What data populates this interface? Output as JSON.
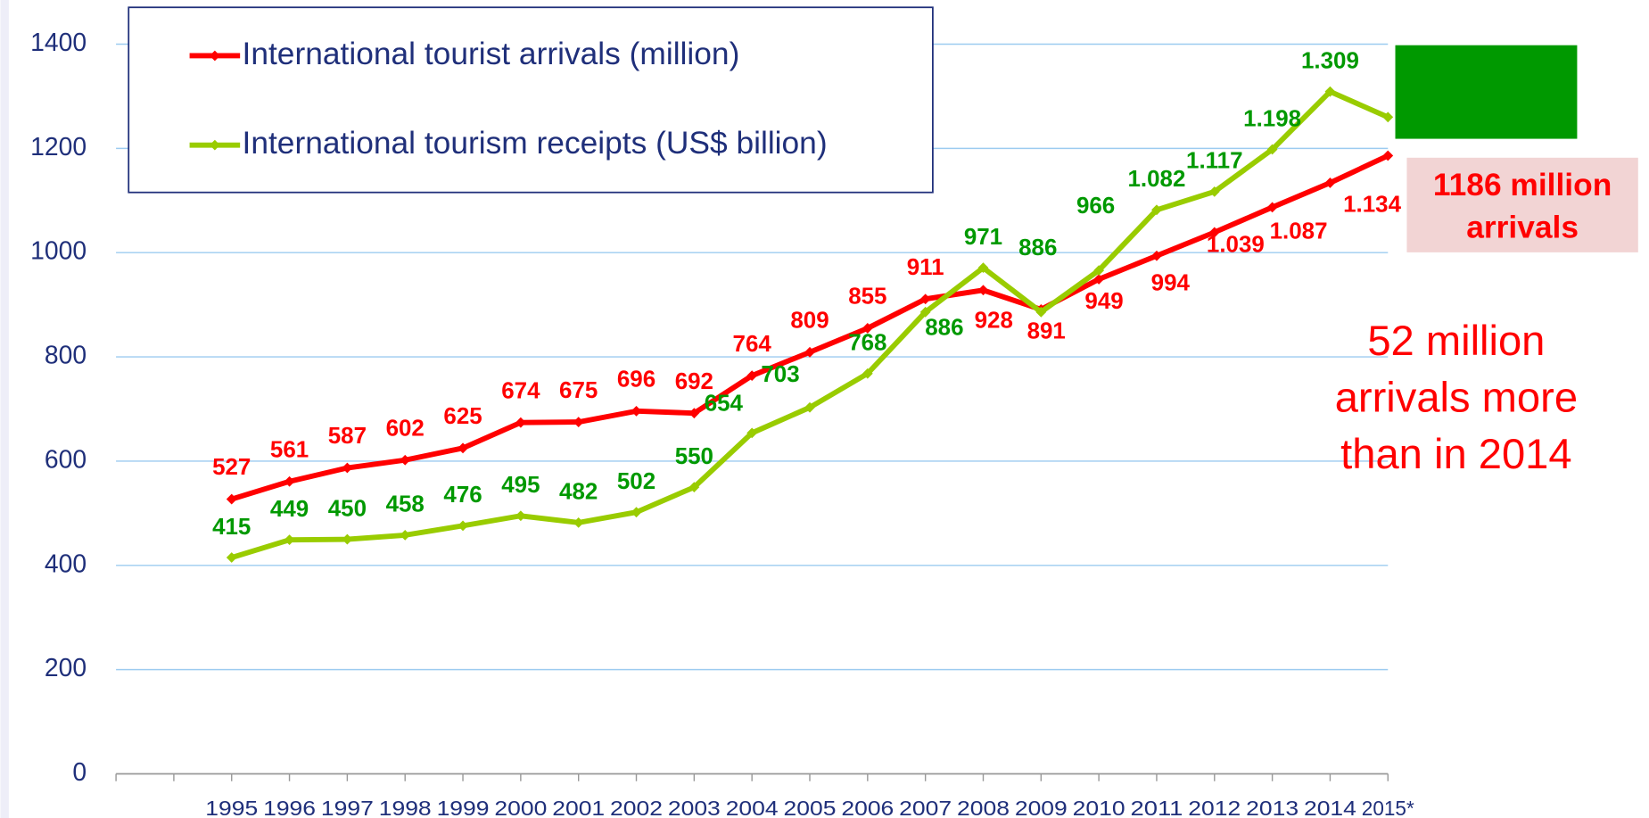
{
  "chart_data": {
    "type": "line",
    "categories": [
      "1995",
      "1996",
      "1997",
      "1998",
      "1999",
      "2000",
      "2001",
      "2002",
      "2003",
      "2004",
      "2005",
      "2006",
      "2007",
      "2008",
      "2009",
      "2010",
      "2011",
      "2012",
      "2013",
      "2014",
      "2015*"
    ],
    "ylim": [
      0,
      1400
    ],
    "yticks": [
      0,
      200,
      400,
      600,
      800,
      1000,
      1200,
      1400
    ],
    "grid": true,
    "legend": "top-left",
    "series": [
      {
        "name": "International tourist arrivals (million)",
        "color": "#ff0000",
        "label_color": "#ff0000",
        "values": [
          527,
          561,
          587,
          602,
          625,
          674,
          675,
          696,
          692,
          764,
          809,
          855,
          911,
          928,
          891,
          949,
          994,
          1039,
          1087,
          1134,
          1186
        ],
        "value_labels": [
          "527",
          "561",
          "587",
          "602",
          "625",
          "674",
          "675",
          "696",
          "692",
          "764",
          "809",
          "855",
          "911",
          "928",
          "891",
          "949",
          "994",
          "1.039",
          "1.087",
          "1.134",
          null
        ]
      },
      {
        "name": "International tourism receipts (US$ billion)",
        "color": "#99cc00",
        "label_color": "#009900",
        "values": [
          415,
          449,
          450,
          458,
          476,
          495,
          482,
          502,
          550,
          654,
          703,
          768,
          886,
          971,
          886,
          966,
          1082,
          1117,
          1198,
          1309,
          1260
        ],
        "value_labels": [
          "415",
          "449",
          "450",
          "458",
          "476",
          "495",
          "482",
          "502",
          "550",
          "654",
          "703",
          "768",
          "886",
          "971",
          "886",
          "966",
          "1.082",
          "1.117",
          "1.198",
          "1.309",
          null
        ]
      }
    ],
    "annotations": [
      {
        "lines": [
          "1186 million",
          "arrivals"
        ]
      },
      {
        "lines": [
          "52 million",
          "arrivals more",
          "than in 2014"
        ]
      }
    ]
  }
}
